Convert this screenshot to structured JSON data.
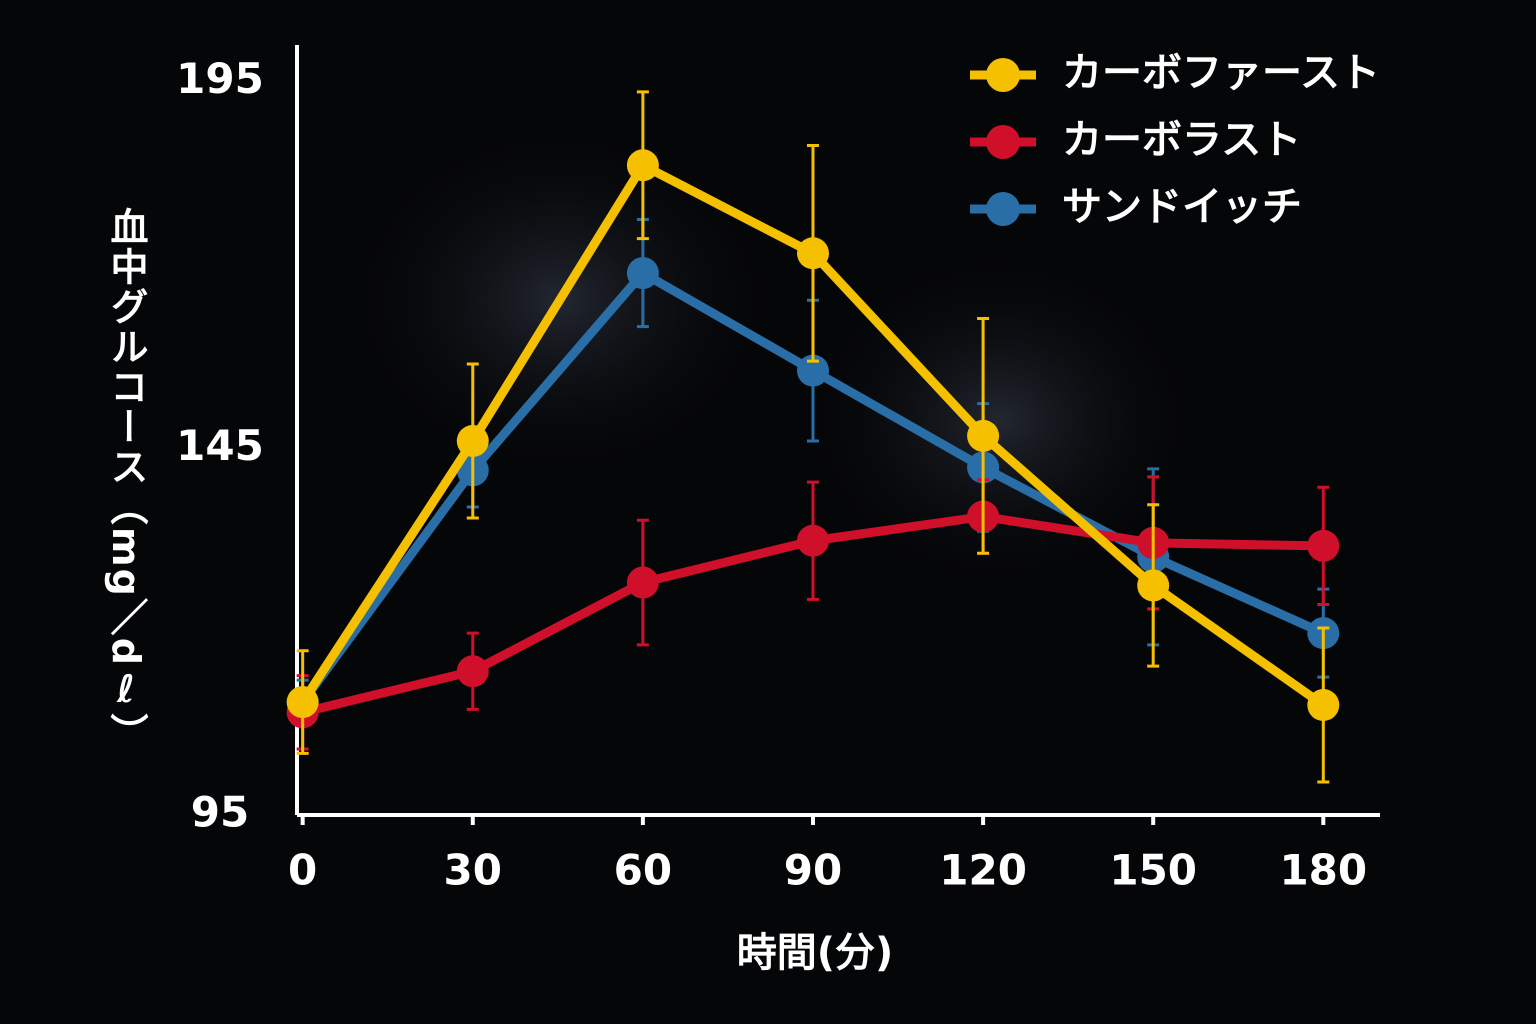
{
  "chart_data": {
    "type": "line",
    "x_label": "時間(分)",
    "y_label": "血中グルコース（mg／dℓ）",
    "x": [
      0,
      30,
      60,
      90,
      120,
      150,
      180
    ],
    "xlim": [
      -1,
      190
    ],
    "xticks": [
      0,
      30,
      60,
      90,
      120,
      150,
      180
    ],
    "ylim": [
      95,
      200
    ],
    "yticks": [
      95,
      145,
      195
    ],
    "grid": false,
    "legend": "upper right",
    "series": [
      {
        "name": "カーボファースト",
        "color": "#f5c000",
        "values": [
          110.4,
          146,
          183.6,
          171.6,
          146.7,
          126.3,
          110
        ],
        "errors": [
          7,
          10.5,
          10,
          14.7,
          16,
          11,
          10.5
        ]
      },
      {
        "name": "カーボラスト",
        "color": "#d0102a",
        "values": [
          109,
          114.6,
          126.7,
          132.4,
          135.7,
          132.1,
          131.7
        ],
        "errors": [
          5,
          5.2,
          8.5,
          8,
          5,
          9,
          8
        ]
      },
      {
        "name": "サンドイッチ",
        "color": "#2a6ea8",
        "values": [
          110.4,
          142,
          168.9,
          155.6,
          142.4,
          130.2,
          119.8
        ],
        "errors": [
          3,
          5,
          7.3,
          9.6,
          8.7,
          12,
          6
        ]
      }
    ]
  }
}
